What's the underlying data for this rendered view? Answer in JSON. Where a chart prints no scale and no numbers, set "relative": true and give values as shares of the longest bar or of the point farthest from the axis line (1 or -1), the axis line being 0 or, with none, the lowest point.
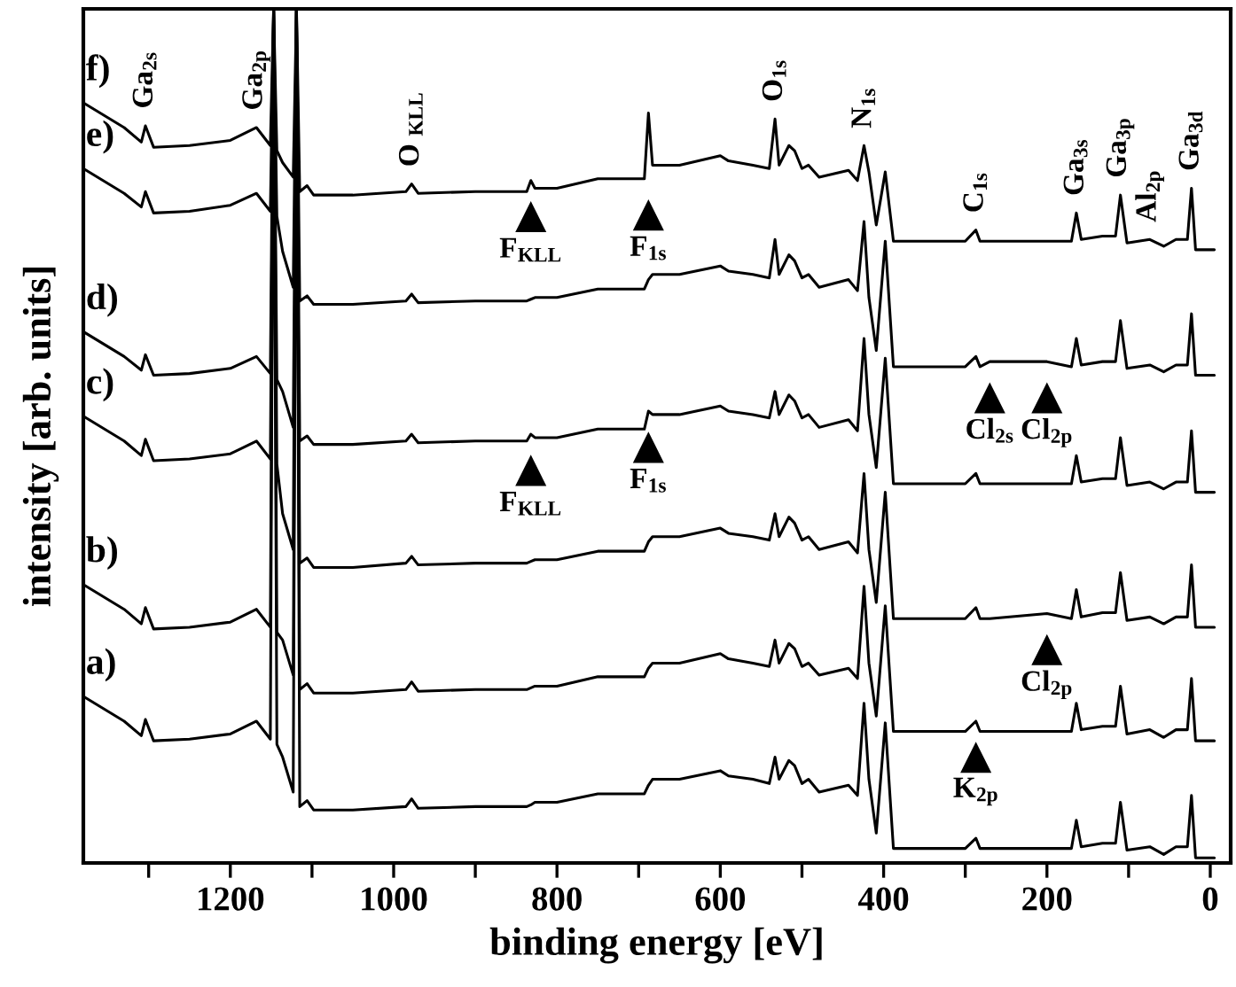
{
  "chart_data": {
    "type": "line",
    "xlabel": "binding energy [eV]",
    "ylabel": "intensity [arb. units]",
    "relative": true,
    "tick_labels": "x",
    "xlim": [
      1380,
      -25
    ],
    "xticks": [
      {
        "value": 1300,
        "label": null
      },
      1200,
      {
        "value": 1100,
        "label": null
      },
      1000,
      {
        "value": 900,
        "label": null
      },
      800,
      {
        "value": 700,
        "label": null
      },
      600,
      {
        "value": 500,
        "label": null
      },
      400,
      {
        "value": 300,
        "label": null
      },
      200,
      {
        "value": 100,
        "label": null
      },
      0
    ],
    "x": [
      1380,
      1330,
      1309,
      1304,
      1294,
      1250,
      1200,
      1168,
      1151,
      1147,
      1143,
      1136,
      1123,
      1119,
      1115,
      1106,
      1098,
      1050,
      985,
      978,
      970,
      900,
      837,
      832,
      827,
      800,
      750,
      693,
      688,
      683,
      650,
      600,
      590,
      560,
      540,
      533,
      528,
      516,
      509,
      500,
      492,
      479,
      443,
      432,
      424,
      418,
      409,
      398,
      388,
      300,
      287,
      282,
      270,
      200,
      170,
      164,
      158,
      132,
      116,
      110,
      102,
      74,
      57,
      42,
      28,
      23,
      18,
      10,
      -5
    ],
    "series": [
      {
        "name": "f)",
        "color": "#000000",
        "values": [
          0.89,
          0.861,
          0.844,
          0.863,
          0.838,
          0.84,
          0.846,
          0.861,
          0.84,
          1,
          0.834,
          0.82,
          0.803,
          1,
          0.786,
          0.793,
          0.782,
          0.782,
          0.786,
          0.795,
          0.784,
          0.786,
          0.786,
          0.799,
          0.79,
          0.79,
          0.801,
          0.801,
          0.878,
          0.817,
          0.817,
          0.828,
          0.822,
          0.817,
          0.813,
          0.871,
          0.817,
          0.84,
          0.834,
          0.813,
          0.817,
          0.803,
          0.811,
          0.799,
          0.84,
          0.809,
          0.747,
          0.809,
          0.728,
          0.728,
          0.741,
          0.728,
          0.728,
          0.728,
          0.728,
          0.761,
          0.73,
          0.734,
          0.734,
          0.782,
          0.726,
          0.73,
          0.722,
          0.73,
          0.73,
          0.79,
          0.718,
          0.718,
          0.718
        ]
      },
      {
        "name": "e)",
        "color": "#000000",
        "values": [
          0.813,
          0.784,
          0.768,
          0.786,
          0.761,
          0.763,
          0.77,
          0.784,
          0.763,
          1,
          0.757,
          0.716,
          0.674,
          1,
          0.658,
          0.664,
          0.654,
          0.654,
          0.658,
          0.666,
          0.656,
          0.658,
          0.658,
          0.66,
          0.662,
          0.662,
          0.672,
          0.672,
          0.683,
          0.689,
          0.689,
          0.699,
          0.693,
          0.689,
          0.685,
          0.73,
          0.689,
          0.712,
          0.705,
          0.685,
          0.689,
          0.674,
          0.683,
          0.67,
          0.751,
          0.662,
          0.6,
          0.728,
          0.581,
          0.581,
          0.593,
          0.581,
          0.587,
          0.587,
          0.581,
          0.614,
          0.583,
          0.587,
          0.587,
          0.635,
          0.579,
          0.583,
          0.575,
          0.583,
          0.583,
          0.643,
          0.571,
          0.571,
          0.571
        ]
      },
      {
        "name": "d)",
        "color": "#000000",
        "values": [
          0.622,
          0.593,
          0.577,
          0.595,
          0.571,
          0.573,
          0.579,
          0.593,
          0.573,
          1,
          0.566,
          0.552,
          0.51,
          1,
          0.494,
          0.5,
          0.49,
          0.49,
          0.494,
          0.502,
          0.492,
          0.494,
          0.494,
          0.502,
          0.498,
          0.498,
          0.508,
          0.508,
          0.529,
          0.525,
          0.525,
          0.535,
          0.529,
          0.525,
          0.521,
          0.552,
          0.525,
          0.548,
          0.541,
          0.521,
          0.525,
          0.51,
          0.519,
          0.506,
          0.614,
          0.525,
          0.463,
          0.591,
          0.444,
          0.444,
          0.456,
          0.444,
          0.444,
          0.444,
          0.444,
          0.477,
          0.446,
          0.45,
          0.45,
          0.498,
          0.442,
          0.446,
          0.438,
          0.446,
          0.446,
          0.506,
          0.434,
          0.434,
          0.434
        ]
      },
      {
        "name": "c)",
        "color": "#000000",
        "values": [
          0.523,
          0.494,
          0.477,
          0.496,
          0.471,
          0.473,
          0.479,
          0.494,
          0.473,
          1,
          0.467,
          0.409,
          0.367,
          1,
          0.351,
          0.357,
          0.346,
          0.346,
          0.351,
          0.359,
          0.349,
          0.351,
          0.351,
          0.353,
          0.355,
          0.355,
          0.365,
          0.365,
          0.376,
          0.382,
          0.382,
          0.392,
          0.386,
          0.382,
          0.378,
          0.409,
          0.382,
          0.405,
          0.398,
          0.378,
          0.382,
          0.367,
          0.376,
          0.363,
          0.456,
          0.367,
          0.305,
          0.434,
          0.286,
          0.286,
          0.299,
          0.286,
          0.286,
          0.292,
          0.286,
          0.32,
          0.288,
          0.293,
          0.293,
          0.34,
          0.284,
          0.288,
          0.28,
          0.288,
          0.288,
          0.349,
          0.276,
          0.276,
          0.276
        ]
      },
      {
        "name": "b)",
        "color": "#000000",
        "values": [
          0.326,
          0.297,
          0.28,
          0.299,
          0.274,
          0.276,
          0.282,
          0.297,
          0.276,
          1,
          0.27,
          0.261,
          0.22,
          1,
          0.203,
          0.21,
          0.199,
          0.199,
          0.203,
          0.212,
          0.201,
          0.203,
          0.203,
          0.205,
          0.207,
          0.207,
          0.218,
          0.218,
          0.228,
          0.234,
          0.234,
          0.245,
          0.239,
          0.234,
          0.23,
          0.261,
          0.234,
          0.257,
          0.251,
          0.23,
          0.234,
          0.22,
          0.228,
          0.216,
          0.324,
          0.234,
          0.172,
          0.301,
          0.154,
          0.154,
          0.166,
          0.154,
          0.154,
          0.154,
          0.154,
          0.187,
          0.156,
          0.16,
          0.16,
          0.207,
          0.151,
          0.156,
          0.147,
          0.156,
          0.156,
          0.216,
          0.143,
          0.143,
          0.143
        ]
      },
      {
        "name": "a)",
        "color": "#000000",
        "values": [
          0.195,
          0.166,
          0.149,
          0.168,
          0.143,
          0.145,
          0.151,
          0.166,
          0.145,
          1,
          0.139,
          0.124,
          0.083,
          1,
          0.066,
          0.073,
          0.062,
          0.062,
          0.066,
          0.075,
          0.064,
          0.066,
          0.066,
          0.068,
          0.071,
          0.071,
          0.081,
          0.081,
          0.091,
          0.098,
          0.098,
          0.108,
          0.102,
          0.098,
          0.093,
          0.124,
          0.098,
          0.12,
          0.114,
          0.093,
          0.098,
          0.083,
          0.091,
          0.079,
          0.187,
          0.098,
          0.035,
          0.164,
          0.017,
          0.017,
          0.029,
          0.017,
          0.017,
          0.017,
          0.017,
          0.05,
          0.019,
          0.023,
          0.023,
          0.071,
          0.015,
          0.019,
          0.01,
          0.019,
          0.019,
          0.079,
          0.006,
          0.006,
          0.006
        ]
      }
    ],
    "annotations": [
      {
        "text": "Ga$_{2s}$",
        "x": 1304,
        "y": 0.863
      },
      {
        "text": "Ga$_{2p}$",
        "x": 1168,
        "y": 0.861
      },
      {
        "text": "O $_{KLL}$",
        "x": 978,
        "y": 0.795
      },
      {
        "text": "O$_{1s}$",
        "x": 533,
        "y": 0.871
      },
      {
        "text": "N$_{1s}$",
        "x": 424,
        "y": 0.84
      },
      {
        "text": "C$_{1s}$",
        "x": 287,
        "y": 0.741
      },
      {
        "text": "Ga$_{3s}$",
        "x": 164,
        "y": 0.761
      },
      {
        "text": "Ga$_{3p}$",
        "x": 110,
        "y": 0.782
      },
      {
        "text": "Al$_{2p}$",
        "x": 74,
        "y": 0.73
      },
      {
        "text": "Ga$_{3d}$",
        "x": 23,
        "y": 0.79
      },
      {
        "text": "F$_{KLL}$",
        "x": 832,
        "y": 0.799
      },
      {
        "text": "F$_{1s}$",
        "x": 688,
        "y": 0.801
      },
      {
        "text": "Cl$_{2s}$",
        "x": 270,
        "y": 0.587
      },
      {
        "text": "Cl$_{2p}$",
        "x": 200,
        "y": 0.587
      },
      {
        "text": "F$_{KLL}$",
        "x": 832,
        "y": 0.502
      },
      {
        "text": "F$_{1s}$",
        "x": 688,
        "y": 0.529
      },
      {
        "text": "Cl$_{2p}$",
        "x": 200,
        "y": 0.292
      },
      {
        "text": "K$_{2p}$",
        "x": 287,
        "y": 0.166
      }
    ]
  }
}
